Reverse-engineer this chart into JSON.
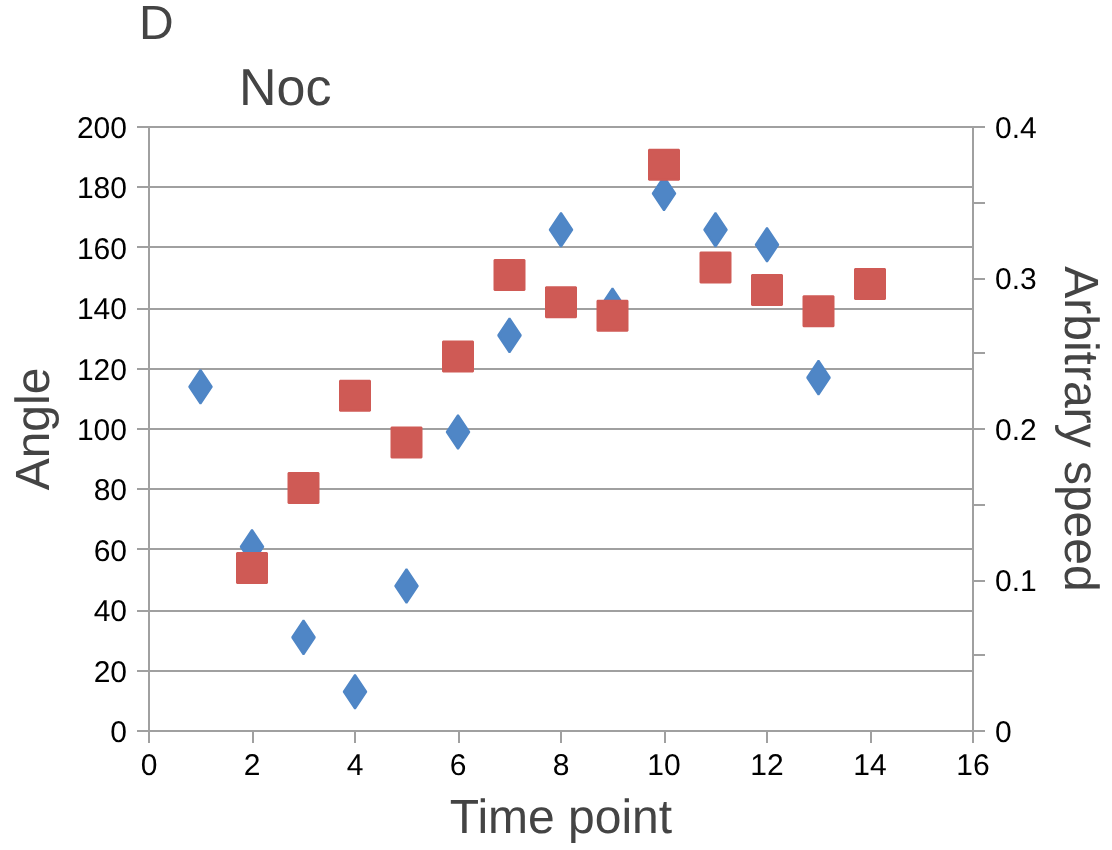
{
  "chart_data": {
    "type": "scatter",
    "title": "Noc",
    "annotations": [
      "D"
    ],
    "xlabel": "Time point",
    "ylabel": "Angle",
    "y2label": "Arbitrary speed",
    "xlim": [
      0,
      16
    ],
    "xticks": [
      0,
      2,
      4,
      6,
      8,
      10,
      12,
      14,
      16
    ],
    "ylim": [
      0,
      200
    ],
    "yticks": [
      0,
      20,
      40,
      60,
      80,
      100,
      120,
      140,
      160,
      180,
      200
    ],
    "y2lim": [
      0,
      0.4
    ],
    "y2ticks": [
      0,
      {
        "value": 0.05,
        "label": null
      },
      0.1,
      {
        "value": 0.15,
        "label": null
      },
      0.2,
      {
        "value": 0.25,
        "label": null
      },
      0.3,
      {
        "value": 0.35,
        "label": null
      },
      0.4
    ],
    "grid": "y",
    "series": [
      {
        "color": "#4f86c6",
        "marker": "diamond",
        "x": [
          1,
          2,
          3,
          4,
          5,
          6,
          7,
          8,
          9,
          10,
          11,
          12,
          13
        ],
        "values": [
          114,
          61,
          31,
          13,
          48,
          99,
          131,
          166,
          141,
          178,
          166,
          161,
          117
        ]
      },
      {
        "color": "#cf5a55",
        "marker": "square",
        "axis": "y2",
        "x": [
          2,
          3,
          4,
          5,
          6,
          7,
          8,
          9,
          10,
          11,
          12,
          13,
          14
        ],
        "values": [
          0.108,
          0.161,
          0.222,
          0.191,
          0.248,
          0.302,
          0.284,
          0.275,
          0.375,
          0.307,
          0.292,
          0.278,
          0.296
        ]
      }
    ]
  }
}
